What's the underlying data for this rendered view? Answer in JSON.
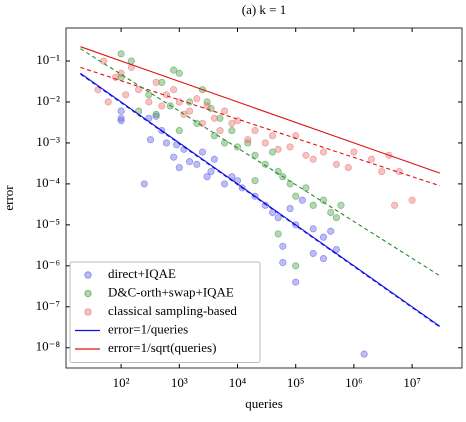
{
  "chart_data": {
    "type": "scatter",
    "title": "(a) k = 1",
    "xlabel": "queries",
    "ylabel": "error",
    "xscale": "log",
    "yscale": "log",
    "xlim": [
      11.3,
      72000000
    ],
    "ylim": [
      3.2e-09,
      0.64
    ],
    "xticks": [
      {
        "value": 100,
        "label": "10²"
      },
      {
        "value": 1000,
        "label": "10³"
      },
      {
        "value": 10000,
        "label": "10⁴"
      },
      {
        "value": 100000,
        "label": "10⁵"
      },
      {
        "value": 1000000,
        "label": "10⁶"
      },
      {
        "value": 10000000,
        "label": "10⁷"
      }
    ],
    "yticks": [
      {
        "value": 1e-08,
        "label": "10⁻⁸"
      },
      {
        "value": 1e-07,
        "label": "10⁻⁷"
      },
      {
        "value": 1e-06,
        "label": "10⁻⁶"
      },
      {
        "value": 1e-05,
        "label": "10⁻⁵"
      },
      {
        "value": 0.0001,
        "label": "10⁻⁴"
      },
      {
        "value": 0.001,
        "label": "10⁻³"
      },
      {
        "value": 0.01,
        "label": "10⁻²"
      },
      {
        "value": 0.1,
        "label": "10⁻¹"
      }
    ],
    "legend": "lower left",
    "series": [
      {
        "name": "direct+IQAE",
        "type": "scatter",
        "color": "#5a5ae6",
        "x": [
          100,
          100,
          100,
          250,
          300,
          320,
          400,
          500,
          600,
          800,
          900,
          1000,
          1200,
          1500,
          2000,
          2500,
          3000,
          3500,
          4000,
          6000,
          8000,
          10000,
          12000,
          20000,
          30000,
          40000,
          50000,
          60000,
          80000,
          100000,
          130000,
          200000,
          300000,
          400000,
          500000,
          100000,
          60000,
          1500000,
          300000,
          200000
        ],
        "values": [
          0.004,
          0.0035,
          0.006,
          0.0001,
          0.004,
          0.0012,
          0.0045,
          0.002,
          0.001,
          0.00045,
          0.0009,
          0.00025,
          0.0007,
          0.00035,
          0.0003,
          0.0006,
          0.00015,
          0.0002,
          0.0004,
          0.0001,
          0.00015,
          0.00012,
          8e-05,
          5e-05,
          3e-05,
          2e-05,
          1.5e-05,
          3e-06,
          2.5e-05,
          1e-05,
          4e-05,
          8e-06,
          5e-06,
          7e-06,
          2.5e-06,
          4e-07,
          1.2e-06,
          7e-09,
          1.5e-06,
          2e-06
        ]
      },
      {
        "name": "D&C-orth+swap+IQAE",
        "type": "scatter",
        "color": "#3f9a3f",
        "x": [
          100,
          100,
          150,
          200,
          300,
          400,
          500,
          700,
          800,
          1000,
          1000,
          1500,
          2000,
          2500,
          3000,
          3500,
          4000,
          5000,
          6000,
          8000,
          10000,
          15000,
          20000,
          30000,
          40000,
          50000,
          60000,
          80000,
          100000,
          150000,
          200000,
          300000,
          400000,
          500000,
          600000,
          100000,
          50000,
          20000
        ],
        "values": [
          0.15,
          0.04,
          0.1,
          0.006,
          0.015,
          0.005,
          0.03,
          0.008,
          0.06,
          0.05,
          0.002,
          0.01,
          0.003,
          0.02,
          0.01,
          0.007,
          0.0015,
          0.004,
          0.001,
          0.002,
          0.0008,
          0.001,
          0.0005,
          0.0003,
          0.0006,
          0.0002,
          0.00015,
          0.0001,
          5e-05,
          8e-05,
          3e-05,
          4e-05,
          2e-05,
          1.5e-05,
          3e-05,
          1e-06,
          6e-06,
          0.00012
        ]
      },
      {
        "name": "classical sampling-based",
        "type": "scatter",
        "color": "#e66a6a",
        "x": [
          40,
          50,
          60,
          80,
          100,
          120,
          150,
          200,
          300,
          400,
          500,
          600,
          800,
          1000,
          1200,
          1500,
          2000,
          2500,
          3000,
          4000,
          5000,
          6000,
          8000,
          10000,
          15000,
          20000,
          30000,
          40000,
          50000,
          80000,
          100000,
          150000,
          200000,
          300000,
          500000,
          800000,
          1000000,
          2000000,
          3000000,
          4000000,
          5000000,
          10000000,
          6000000
        ],
        "values": [
          0.02,
          0.1,
          0.01,
          0.04,
          0.05,
          0.015,
          0.07,
          0.02,
          0.01,
          0.03,
          0.008,
          0.015,
          0.02,
          0.01,
          0.005,
          0.006,
          0.012,
          0.003,
          0.008,
          0.004,
          0.002,
          0.006,
          0.003,
          0.0035,
          0.0012,
          0.002,
          0.001,
          0.0015,
          0.0007,
          0.0008,
          0.0015,
          0.0005,
          0.0004,
          0.0006,
          0.0003,
          0.00025,
          0.0006,
          0.0004,
          0.0002,
          0.0005,
          3e-05,
          4e-05,
          0.0002
        ]
      },
      {
        "name": "error=1/queries",
        "type": "line",
        "color": "#1010e0",
        "x": [
          20,
          30000000
        ],
        "values": [
          0.05,
          3.33e-08
        ]
      },
      {
        "name": "error=1/sqrt(queries)",
        "type": "line",
        "color": "#e01010",
        "x": [
          20,
          30000000
        ],
        "values": [
          0.224,
          0.000183
        ]
      },
      {
        "type": "line",
        "dash": true,
        "color": "#1010e0",
        "x": [
          20,
          30000000
        ],
        "values": [
          0.048,
          3.2e-08
        ]
      },
      {
        "type": "line",
        "dash": true,
        "color": "#e01010",
        "x": [
          20,
          30000000
        ],
        "values": [
          0.07,
          9e-05
        ]
      },
      {
        "type": "line",
        "dash": true,
        "color": "#2a8a2a",
        "x": [
          20,
          30000000
        ],
        "values": [
          0.2,
          5.7e-07
        ]
      }
    ]
  }
}
